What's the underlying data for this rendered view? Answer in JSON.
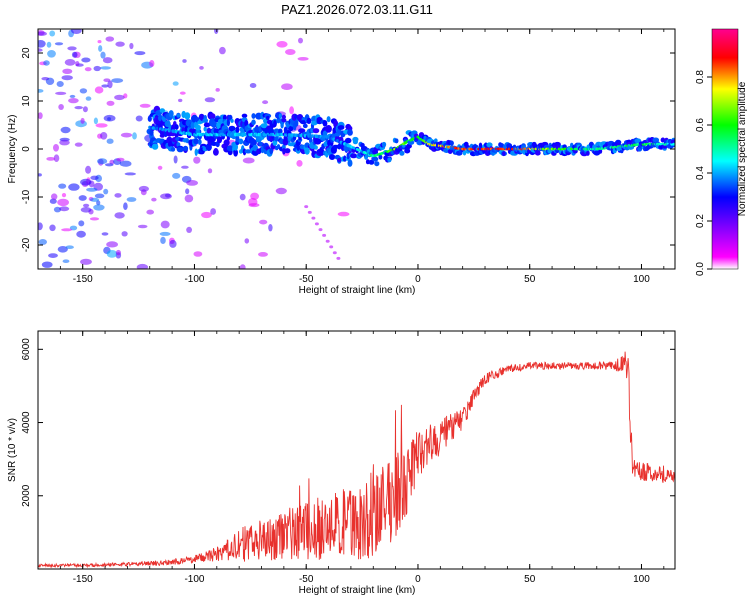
{
  "title": "PAZ1.2026.072.03.11.G11",
  "colors": {
    "line": "#e8312d",
    "colorbar": [
      "#ffffff",
      "#ff00ff",
      "#0000ff",
      "#00ffff",
      "#00ff00",
      "#ffff00",
      "#ff0000"
    ]
  },
  "chart_data": [
    {
      "type": "heatmap",
      "xlabel": "Height of straight line (km)",
      "ylabel": "Frequency (Hz)",
      "xlim": [
        -170,
        115
      ],
      "ylim": [
        -25,
        25
      ],
      "xticks": [
        -150,
        -100,
        -50,
        0,
        50,
        100
      ],
      "yticks": [
        -20,
        -10,
        0,
        10,
        20
      ],
      "colorbar": {
        "label": "Normalized spectral amplitude",
        "range": [
          0,
          1
        ],
        "ticks": [
          0.0,
          0.2,
          0.4,
          0.6,
          0.8
        ]
      },
      "ridge": {
        "x": [
          -120,
          -100,
          -80,
          -60,
          -40,
          -30,
          -20,
          -10,
          -5,
          0,
          5,
          20,
          40,
          60,
          80,
          100,
          115
        ],
        "frequency": [
          4.5,
          3,
          3,
          3,
          2.5,
          0.5,
          -1.5,
          0,
          1.5,
          2.5,
          1,
          0,
          0,
          0,
          0,
          1,
          1
        ],
        "amplitude": [
          0.4,
          0.45,
          0.45,
          0.45,
          0.4,
          0.45,
          0.55,
          0.7,
          0.65,
          0.6,
          0.8,
          0.95,
          1.0,
          0.7,
          0.55,
          0.6,
          0.5
        ]
      }
    },
    {
      "type": "line",
      "xlabel": "Height of straight line (km)",
      "ylabel": "SNR (10 * v/v)",
      "xlim": [
        -170,
        115
      ],
      "ylim": [
        0,
        6500
      ],
      "xticks": [
        -150,
        -100,
        -50,
        0,
        50,
        100
      ],
      "yticks": [
        2000,
        4000,
        6000
      ],
      "series": [
        {
          "name": "SNR",
          "x": [
            -170,
            -150,
            -130,
            -110,
            -100,
            -90,
            -80,
            -70,
            -60,
            -50,
            -40,
            -30,
            -20,
            -15,
            -10,
            -5,
            0,
            5,
            10,
            15,
            20,
            25,
            30,
            40,
            50,
            60,
            70,
            80,
            85,
            90,
            92,
            94,
            95,
            96,
            100,
            105,
            110,
            115
          ],
          "values": [
            100,
            100,
            130,
            180,
            280,
            400,
            650,
            800,
            950,
            1050,
            1150,
            1250,
            1350,
            1700,
            2000,
            2400,
            3100,
            3400,
            3600,
            3850,
            4100,
            4700,
            5200,
            5450,
            5550,
            5550,
            5550,
            5550,
            5550,
            5600,
            5700,
            5500,
            4000,
            2700,
            2650,
            2650,
            2600,
            2500
          ],
          "noise": [
            40,
            40,
            50,
            80,
            100,
            200,
            450,
            600,
            700,
            800,
            900,
            1000,
            1100,
            1200,
            1200,
            900,
            700,
            600,
            500,
            400,
            300,
            200,
            150,
            100,
            100,
            100,
            100,
            100,
            120,
            200,
            300,
            400,
            800,
            300,
            250,
            250,
            250,
            200
          ]
        }
      ]
    }
  ]
}
